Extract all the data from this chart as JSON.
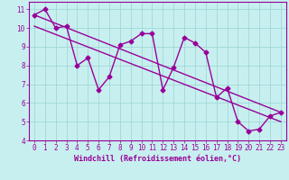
{
  "x": [
    0,
    1,
    2,
    3,
    4,
    5,
    6,
    7,
    8,
    9,
    10,
    11,
    12,
    13,
    14,
    15,
    16,
    17,
    18,
    19,
    20,
    21,
    22,
    23
  ],
  "y": [
    10.7,
    11.0,
    10.0,
    10.1,
    8.0,
    8.4,
    6.7,
    7.4,
    9.1,
    9.3,
    9.7,
    9.7,
    6.7,
    7.9,
    9.5,
    9.2,
    8.7,
    6.3,
    6.8,
    5.0,
    4.5,
    4.6,
    5.3,
    5.5
  ],
  "line1_x": [
    0,
    23
  ],
  "line1_y": [
    10.7,
    5.5
  ],
  "line2_x": [
    0,
    23
  ],
  "line2_y": [
    10.1,
    5.0
  ],
  "color": "#990099",
  "bg_color": "#c8efef",
  "plot_bg": "#c8efef",
  "xlabel": "Windchill (Refroidissement éolien,°C)",
  "xlim": [
    -0.5,
    23.5
  ],
  "ylim": [
    4,
    11.4
  ],
  "yticks": [
    4,
    5,
    6,
    7,
    8,
    9,
    10,
    11
  ],
  "xticks": [
    0,
    1,
    2,
    3,
    4,
    5,
    6,
    7,
    8,
    9,
    10,
    11,
    12,
    13,
    14,
    15,
    16,
    17,
    18,
    19,
    20,
    21,
    22,
    23
  ],
  "marker": "D",
  "markersize": 2.5,
  "linewidth": 1.0,
  "tick_fontsize": 5.5,
  "label_fontsize": 6.0,
  "grid_color": "#a0d8d8"
}
